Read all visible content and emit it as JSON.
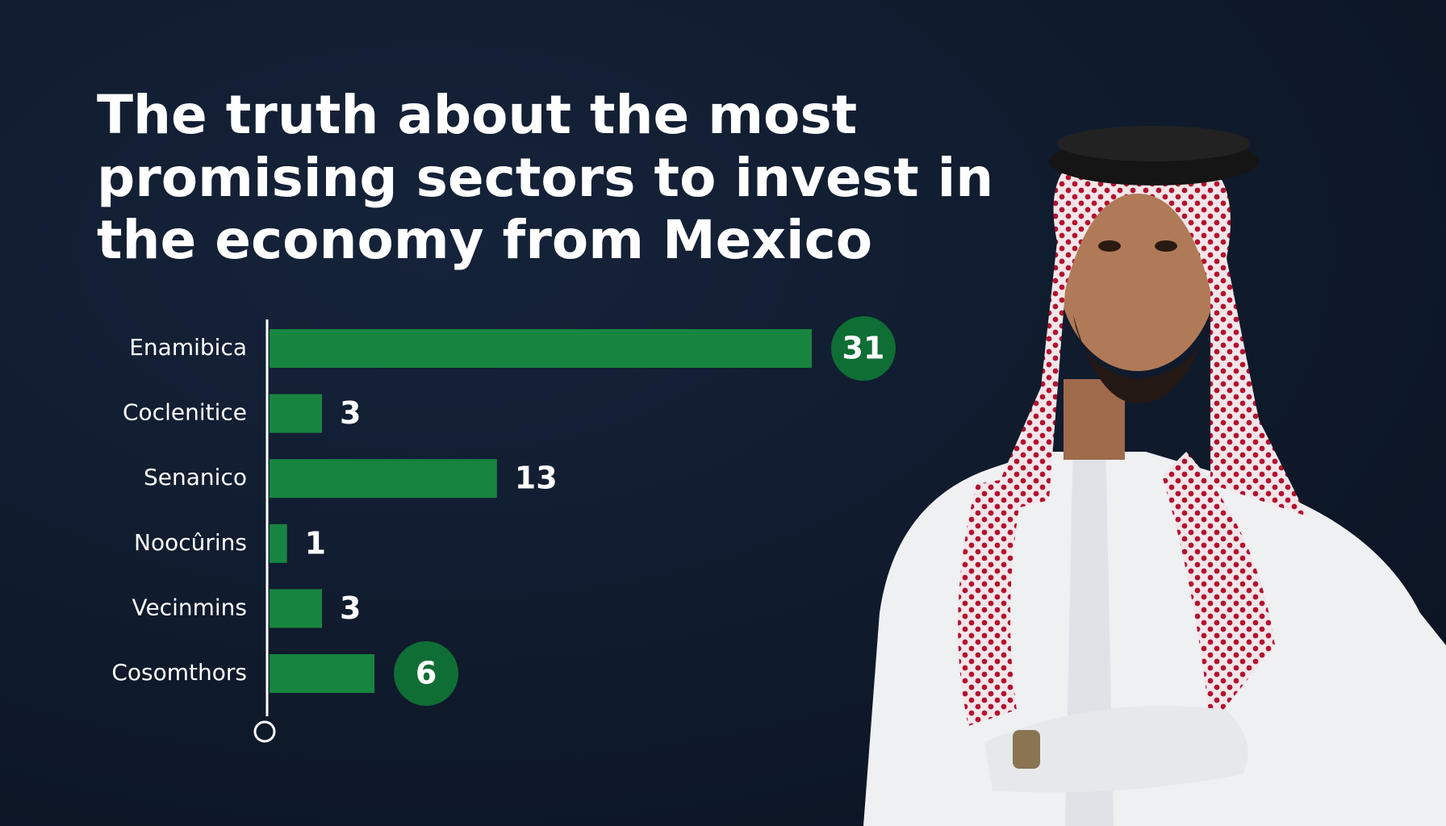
{
  "chart_data": {
    "type": "bar",
    "orientation": "horizontal",
    "title_lines": [
      "The truth about the most",
      "promising sectors to invest in",
      "the economy from Mexico"
    ],
    "categories": [
      "Enamibica",
      "Coclenitice",
      "Senanico",
      "Noocûrins",
      "Vecinmins",
      "Cosomthors"
    ],
    "values": [
      31,
      3,
      13,
      1,
      3,
      6
    ],
    "color": "#17853f",
    "badge_color": "#0f6e34",
    "badge_indices": [
      0,
      5
    ]
  }
}
